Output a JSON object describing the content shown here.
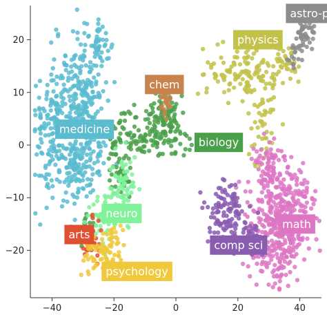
{
  "chart_data": {
    "type": "scatter",
    "title": "",
    "xlabel": "",
    "ylabel": "",
    "xlim": [
      -47,
      47
    ],
    "ylim": [
      -29,
      26.5
    ],
    "xticks": [
      -40,
      -20,
      0,
      20,
      40
    ],
    "yticks": [
      20,
      10,
      0,
      -10,
      -20
    ],
    "xtick_labels": [
      "−40",
      "−20",
      "0",
      "20",
      "40"
    ],
    "ytick_labels": [
      "20",
      "10",
      "0",
      "−10",
      "−20"
    ],
    "grid": false,
    "clusters": [
      {
        "name": "medicine",
        "color": "#5bbcd0",
        "label_pos": [
          -39,
          3
        ],
        "blobs": [
          {
            "cx": -38,
            "cy": 3,
            "sx": 5,
            "sy": 7,
            "n": 260
          },
          {
            "cx": -30,
            "cy": 10,
            "sx": 4,
            "sy": 6,
            "n": 160
          },
          {
            "cx": -25,
            "cy": 19,
            "sx": 2.5,
            "sy": 2.2,
            "n": 45
          },
          {
            "cx": -28,
            "cy": 0,
            "sx": 3,
            "sy": 4,
            "n": 80
          },
          {
            "cx": -32,
            "cy": -6,
            "sx": 3,
            "sy": 2.5,
            "n": 40
          }
        ]
      },
      {
        "name": "biology",
        "color": "#4aa04a",
        "label_pos": [
          6,
          0.5
        ],
        "blobs": [
          {
            "cx": -3,
            "cy": 3,
            "sx": 3.5,
            "sy": 2.5,
            "n": 90
          },
          {
            "cx": -13,
            "cy": 2,
            "sx": 4,
            "sy": 2.5,
            "n": 80
          },
          {
            "cx": -18,
            "cy": -4,
            "sx": 2.5,
            "sy": 3,
            "n": 40
          },
          {
            "cx": -4,
            "cy": 7,
            "sx": 2,
            "sy": 2,
            "n": 30
          },
          {
            "cx": -29,
            "cy": -15,
            "sx": 1.5,
            "sy": 1.5,
            "n": 12
          }
        ]
      },
      {
        "name": "chem",
        "color": "#c8844c",
        "label_pos": [
          -10,
          11.5
        ],
        "blobs": [
          {
            "cx": -3,
            "cy": 8.5,
            "sx": 1.3,
            "sy": 1.5,
            "n": 30
          }
        ]
      },
      {
        "name": "neuro",
        "color": "#80f29a",
        "label_pos": [
          -24,
          -13
        ],
        "blobs": [
          {
            "cx": -17,
            "cy": -8,
            "sx": 2,
            "sy": 3,
            "n": 70
          },
          {
            "cx": -24,
            "cy": -14,
            "sx": 3,
            "sy": 2.5,
            "n": 50
          }
        ]
      },
      {
        "name": "arts",
        "color": "#e05030",
        "label_pos": [
          -36,
          -17
        ],
        "blobs": [
          {
            "cx": -28,
            "cy": -18,
            "sx": 1.5,
            "sy": 2,
            "n": 35
          }
        ]
      },
      {
        "name": "psychology",
        "color": "#f0c83c",
        "label_pos": [
          -24,
          -24
        ],
        "blobs": [
          {
            "cx": -24,
            "cy": -21,
            "sx": 3,
            "sy": 1.6,
            "n": 55
          },
          {
            "cx": -20,
            "cy": -17,
            "sx": 1.6,
            "sy": 1.6,
            "n": 25
          }
        ]
      },
      {
        "name": "physics",
        "color": "#c2c24a",
        "label_pos": [
          18.5,
          20
        ],
        "blobs": [
          {
            "cx": 22,
            "cy": 14,
            "sx": 6,
            "sy": 2.5,
            "n": 120
          },
          {
            "cx": 28,
            "cy": 4,
            "sx": 2.5,
            "sy": 5,
            "n": 50
          },
          {
            "cx": 36,
            "cy": 16,
            "sx": 2.5,
            "sy": 2.2,
            "n": 35
          }
        ]
      },
      {
        "name": "astro-phys",
        "color": "#8c8c8c",
        "label_pos": [
          35.5,
          25
        ],
        "blobs": [
          {
            "cx": 41.5,
            "cy": 21,
            "sx": 1.6,
            "sy": 1.6,
            "n": 55
          },
          {
            "cx": 38,
            "cy": 17,
            "sx": 1.5,
            "sy": 1.5,
            "n": 15
          }
        ]
      },
      {
        "name": "math",
        "color": "#dd77c4",
        "label_pos": [
          33,
          -15
        ],
        "blobs": [
          {
            "cx": 33,
            "cy": -16,
            "sx": 5,
            "sy": 5,
            "n": 380
          },
          {
            "cx": 30,
            "cy": -4,
            "sx": 3,
            "sy": 3,
            "n": 80
          },
          {
            "cx": 40,
            "cy": -12,
            "sx": 2.5,
            "sy": 4,
            "n": 60
          }
        ]
      },
      {
        "name": "comp sci",
        "color": "#8a5cb0",
        "label_pos": [
          11,
          -19
        ],
        "blobs": [
          {
            "cx": 16,
            "cy": -13,
            "sx": 3,
            "sy": 3,
            "n": 110
          },
          {
            "cx": 24,
            "cy": -18,
            "sx": 2.5,
            "sy": 2,
            "n": 40
          }
        ]
      }
    ]
  }
}
